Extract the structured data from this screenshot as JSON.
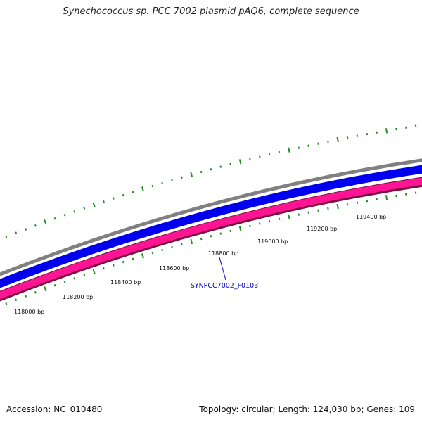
{
  "title": "Synechococcus sp. PCC 7002 plasmid pAQ6, complete sequence",
  "footer": {
    "accession": "Accession: NC_010480",
    "summary": "Topology: circular; Length: 124,030 bp; Genes: 109"
  },
  "map": {
    "backbone_color": "#808080",
    "forward_feature_color": "#0000ee",
    "reverse_feature_color": "#ff1493",
    "reverse_outline_color": "#7a1040",
    "tick_color": "#228b22",
    "label_color": "#0000cc",
    "scale_labels": [
      "118000 bp",
      "118200 bp",
      "118400 bp",
      "118600 bp",
      "118800 bp",
      "119000 bp",
      "119200 bp",
      "119400 bp"
    ],
    "gene_label": "SYNPCC7002_F0103"
  }
}
